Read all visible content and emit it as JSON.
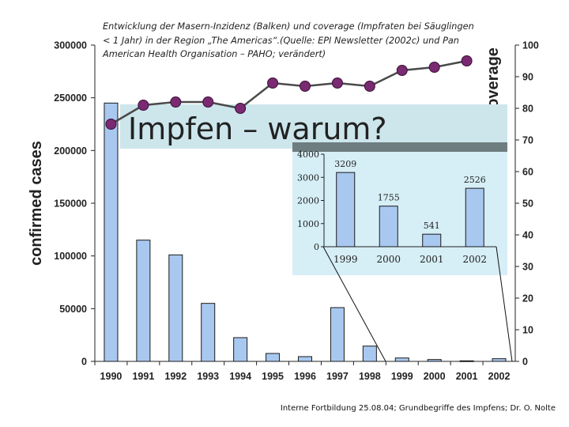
{
  "caption": "Entwicklung der Masern-Inzidenz (Balken) und coverage (Impfraten bei Säuglingen < 1 Jahr) in der Region „The Americas“.(Quelle: EPI Newsletter (2002c) und Pan American Health Organisation – PAHO; verändert)",
  "banner_title": "Impfen – warum?",
  "footer": "Interne Fortbildung 25.08.04; Grundbegriffe des Impfens; Dr. O. Nolte",
  "colors": {
    "bar_fill": "#a8c8f0",
    "bar_stroke": "#1a1a1a",
    "line": "#4a4a4a",
    "marker": "#7a2a72",
    "banner": "#cce6ec",
    "inset_bg": "#d6eef6",
    "inset_header": "#6e7d80"
  },
  "chart_data": [
    {
      "type": "bar+line",
      "title": "",
      "categories": [
        "1990",
        "1991",
        "1992",
        "1993",
        "1994",
        "1995",
        "1996",
        "1997",
        "1998",
        "1999",
        "2000",
        "2001",
        "2002"
      ],
      "series": [
        {
          "name": "confirmed cases",
          "type": "bar",
          "axis": "left",
          "values": [
            245000,
            115000,
            101000,
            55000,
            22500,
            7500,
            4500,
            51000,
            14500,
            3209,
            1755,
            541,
            2526
          ]
        },
        {
          "name": "coverage",
          "type": "line",
          "axis": "right",
          "values": [
            75,
            81,
            82,
            82,
            80,
            88,
            87,
            88,
            87,
            92,
            93,
            95,
            null
          ]
        }
      ],
      "ylabel": "confirmed cases",
      "ylabel_right": "coverage",
      "ylim": [
        0,
        300000
      ],
      "ylim_right": [
        0,
        100
      ],
      "yticks": [
        "0",
        "50000",
        "100000",
        "150000",
        "200000",
        "250000",
        "300000"
      ],
      "yticks_right": [
        "0",
        "10",
        "20",
        "30",
        "40",
        "50",
        "60",
        "70",
        "80",
        "90",
        "100"
      ]
    },
    {
      "type": "bar",
      "title": "",
      "categories": [
        "1999",
        "2000",
        "2001",
        "2002"
      ],
      "values": [
        3209,
        1755,
        541,
        2526
      ],
      "labels": [
        "3209",
        "1755",
        "541",
        "2526"
      ],
      "ylim": [
        0,
        4000
      ],
      "yticks": [
        "0",
        "1000",
        "2000",
        "3000",
        "4000"
      ]
    }
  ]
}
